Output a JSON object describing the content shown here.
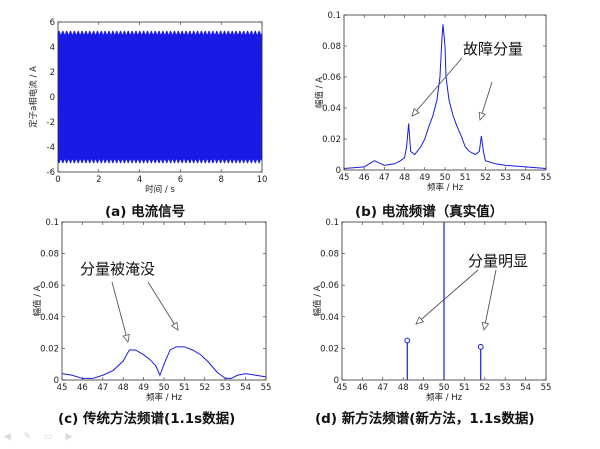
{
  "panels": {
    "a": {
      "caption": "(a) 电流信号"
    },
    "b": {
      "caption": "(b) 电流频谱（真实值）",
      "annotation": "故障分量"
    },
    "c": {
      "caption": "(c) 传统方法频谱(1.1s数据)",
      "annotation": "分量被淹没"
    },
    "d": {
      "caption": "(d) 新方法频谱(新方法，1.1s数据)",
      "annotation": "分量明显"
    }
  },
  "chart_data": [
    {
      "id": "a",
      "type": "line",
      "title": "",
      "xlabel": "时间 / s",
      "ylabel": "定子a相电流 / A",
      "xlim": [
        0,
        10
      ],
      "ylim": [
        -6,
        6
      ],
      "xticks": [
        0,
        2,
        4,
        6,
        8,
        10
      ],
      "yticks": [
        -6,
        -4,
        -2,
        0,
        2,
        4,
        6
      ],
      "series": [
        {
          "kind": "oscillation",
          "amplitude_max": 5.3,
          "amplitude_min": 5.0,
          "t_start": 0,
          "t_end": 10,
          "color": "#1a1ae6"
        }
      ]
    },
    {
      "id": "b",
      "type": "line",
      "title": "",
      "xlabel": "频率 / Hz",
      "ylabel": "幅值 / A",
      "xlim": [
        45,
        55
      ],
      "ylim": [
        0,
        0.1
      ],
      "xticks": [
        45,
        46,
        47,
        48,
        49,
        50,
        51,
        52,
        53,
        54,
        55
      ],
      "yticks": [
        0,
        0.02,
        0.04,
        0.06,
        0.08,
        0.1
      ],
      "series": [
        {
          "x": [
            45,
            46,
            46.5,
            47,
            47.5,
            47.8,
            48,
            48.1,
            48.2,
            48.3,
            48.5,
            48.8,
            49,
            49.2,
            49.4,
            49.6,
            49.75,
            49.85,
            49.9,
            50,
            50.05,
            50.1,
            50.2,
            50.4,
            50.6,
            50.8,
            51,
            51.2,
            51.5,
            51.7,
            51.8,
            51.9,
            52,
            52.5,
            53,
            54,
            55
          ],
          "y": [
            0.001,
            0.002,
            0.006,
            0.003,
            0.004,
            0.006,
            0.008,
            0.015,
            0.03,
            0.012,
            0.01,
            0.015,
            0.02,
            0.028,
            0.035,
            0.045,
            0.06,
            0.085,
            0.094,
            0.08,
            0.06,
            0.055,
            0.045,
            0.035,
            0.028,
            0.022,
            0.015,
            0.012,
            0.01,
            0.012,
            0.022,
            0.012,
            0.006,
            0.004,
            0.003,
            0.002,
            0.001
          ],
          "color": "#1a1ae6"
        }
      ]
    },
    {
      "id": "c",
      "type": "line",
      "title": "",
      "xlabel": "频率 / Hz",
      "ylabel": "幅值 / A",
      "xlim": [
        45,
        55
      ],
      "ylim": [
        0,
        0.1
      ],
      "xticks": [
        45,
        46,
        47,
        48,
        49,
        50,
        51,
        52,
        53,
        54,
        55
      ],
      "yticks": [
        0,
        0.02,
        0.04,
        0.06,
        0.08,
        0.1
      ],
      "series": [
        {
          "x": [
            45,
            45.5,
            46,
            46.5,
            47,
            47.5,
            48,
            48.3,
            48.6,
            49,
            49.3,
            49.6,
            49.8,
            50,
            50.3,
            50.6,
            51,
            51.4,
            51.8,
            52.2,
            52.6,
            53,
            53.3,
            53.6,
            54,
            54.5,
            55
          ],
          "y": [
            0.004,
            0.003,
            0.001,
            0.001,
            0.003,
            0.006,
            0.012,
            0.019,
            0.019,
            0.016,
            0.013,
            0.009,
            0.003,
            0.01,
            0.019,
            0.021,
            0.021,
            0.019,
            0.016,
            0.011,
            0.005,
            0.001,
            0.001,
            0.003,
            0.004,
            0.003,
            0.002
          ],
          "color": "#1a1ae6"
        }
      ]
    },
    {
      "id": "d",
      "type": "stem",
      "title": "",
      "xlabel": "频率 / Hz",
      "ylabel": "幅值 / A",
      "xlim": [
        45,
        55
      ],
      "ylim": [
        0,
        0.1
      ],
      "xticks": [
        45,
        46,
        47,
        48,
        49,
        50,
        51,
        52,
        53,
        54,
        55
      ],
      "yticks": [
        0,
        0.02,
        0.04,
        0.06,
        0.08,
        0.1
      ],
      "stems": [
        {
          "x": 48.2,
          "y": 0.025,
          "marker": true
        },
        {
          "x": 50,
          "y": 0.1,
          "marker": false
        },
        {
          "x": 51.8,
          "y": 0.021,
          "marker": true
        }
      ],
      "color": "#1a1ae6"
    }
  ]
}
